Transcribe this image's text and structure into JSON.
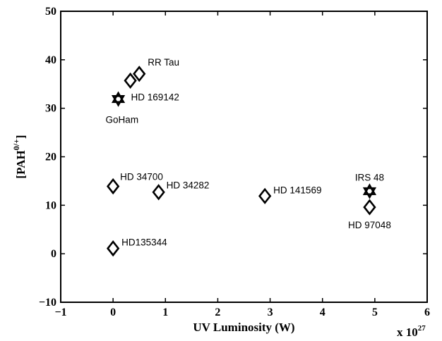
{
  "chart_data": {
    "type": "scatter",
    "xlabel": "UV Luminosity (W)",
    "ylabel_base": "[PAH",
    "ylabel_sup": "0/+",
    "ylabel_close": "]",
    "x_multiplier_base": "x 10",
    "x_multiplier_exp": "27",
    "xlim": [
      -1,
      6
    ],
    "ylim": [
      -10,
      50
    ],
    "x_ticks": [
      "−1",
      "0",
      "1",
      "2",
      "3",
      "4",
      "5",
      "6"
    ],
    "x_tick_values": [
      -1,
      0,
      1,
      2,
      3,
      4,
      5,
      6
    ],
    "y_ticks": [
      "−10",
      "0",
      "10",
      "20",
      "30",
      "40",
      "50"
    ],
    "y_tick_values": [
      -10,
      0,
      10,
      20,
      30,
      40,
      50
    ],
    "grid": false,
    "legend": "none",
    "points": [
      {
        "x": 0.5,
        "y": 37.1,
        "marker": "diamond",
        "label": "RR Tau"
      },
      {
        "x": 0.33,
        "y": 35.7,
        "marker": "diamond",
        "label": ""
      },
      {
        "x": 0.1,
        "y": 31.9,
        "marker": "star",
        "label": "HD 169142"
      },
      {
        "x": 0.1,
        "y": 31.9,
        "marker": "none",
        "label": "GoHam"
      },
      {
        "x": 0.0,
        "y": 13.9,
        "marker": "diamond",
        "label": "HD 34700"
      },
      {
        "x": 0.87,
        "y": 12.7,
        "marker": "diamond",
        "label": "HD 34282"
      },
      {
        "x": 2.9,
        "y": 11.9,
        "marker": "diamond",
        "label": "HD 141569"
      },
      {
        "x": 4.9,
        "y": 12.9,
        "marker": "star",
        "label": "IRS 48"
      },
      {
        "x": 4.9,
        "y": 9.6,
        "marker": "diamond",
        "label": "HD 97048"
      },
      {
        "x": 0.0,
        "y": 1.1,
        "marker": "diamond",
        "label": "HD135344"
      }
    ]
  }
}
